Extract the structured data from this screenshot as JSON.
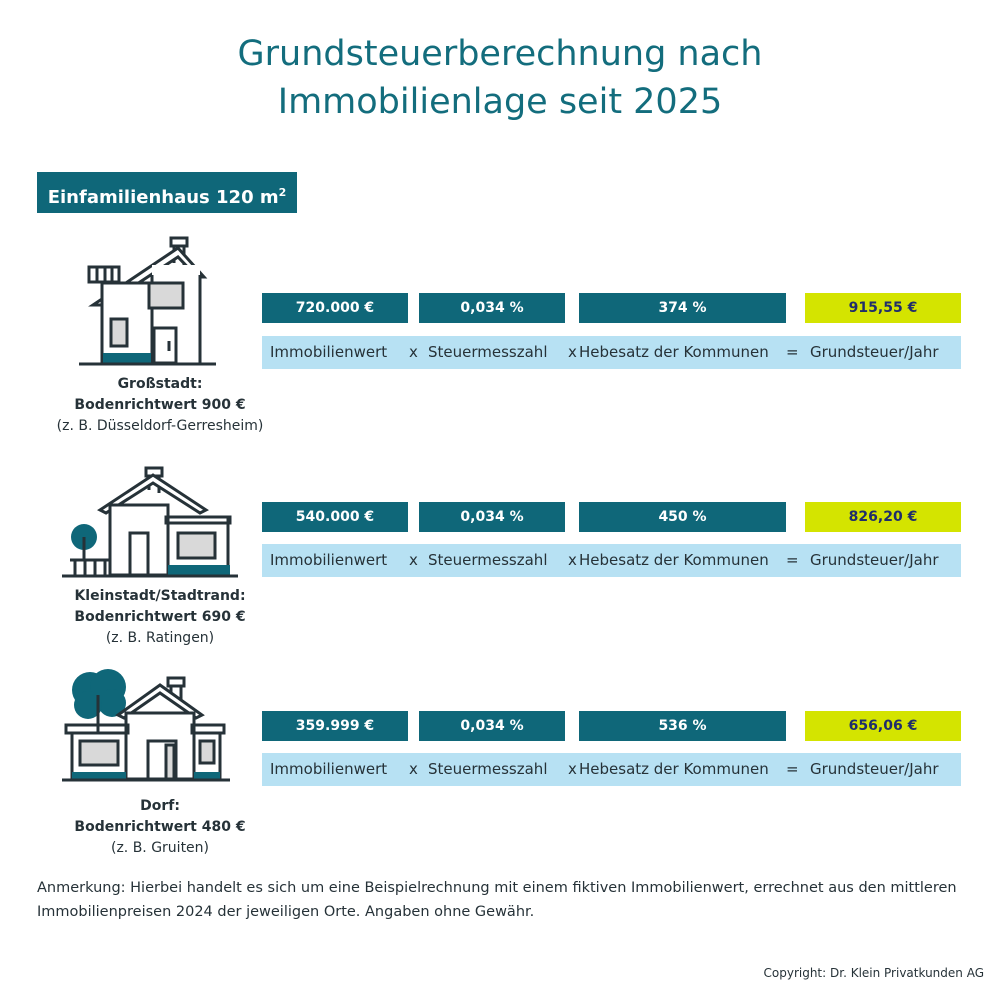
{
  "title": [
    "Grundsteuerberechnung nach",
    "Immobilienlage seit 2025"
  ],
  "tag": {
    "label": "Einfamilienhaus 120 m",
    "sup": "2"
  },
  "formula": {
    "term1": "Immobilienwert",
    "op1": "x",
    "term2": "Steuermesszahl",
    "op2": "x",
    "term3": "Hebesatz der Kommunen",
    "op3": "=",
    "term4": "Grundsteuer/Jahr"
  },
  "rows": [
    {
      "location": "Großstadt:",
      "land_value": "Bodenrichtwert 900 €",
      "example": "(z. B. Düsseldorf-Gerresheim)",
      "value": "720.000 €",
      "rate": "0,034 %",
      "multiplier": "374 %",
      "tax": "915,55 €"
    },
    {
      "location": "Kleinstadt/Stadtrand:",
      "land_value": "Bodenrichtwert 690 €",
      "example": "(z. B. Ratingen)",
      "value": "540.000 €",
      "rate": "0,034 %",
      "multiplier": "450 %",
      "tax": "826,20 €"
    },
    {
      "location": "Dorf:",
      "land_value": "Bodenrichtwert 480 €",
      "example": "(z. B. Gruiten)",
      "value": "359.999 €",
      "rate": "0,034 %",
      "multiplier": "536 %",
      "tax": "656,06 €"
    }
  ],
  "note": "Anmerkung: Hierbei handelt es sich um eine Beispielrechnung mit einem fiktiven Immobilienwert, errechnet aus den mittleren Immobilienpreisen 2024 der jeweiligen Orte. Angaben ohne Gewähr.",
  "copyright": "Copyright: Dr. Klein Privatkunden AG",
  "colors": {
    "teal": "#0f6779",
    "lime": "#d4e400",
    "light_blue": "#b7e1f3",
    "title": "#136d7d"
  }
}
